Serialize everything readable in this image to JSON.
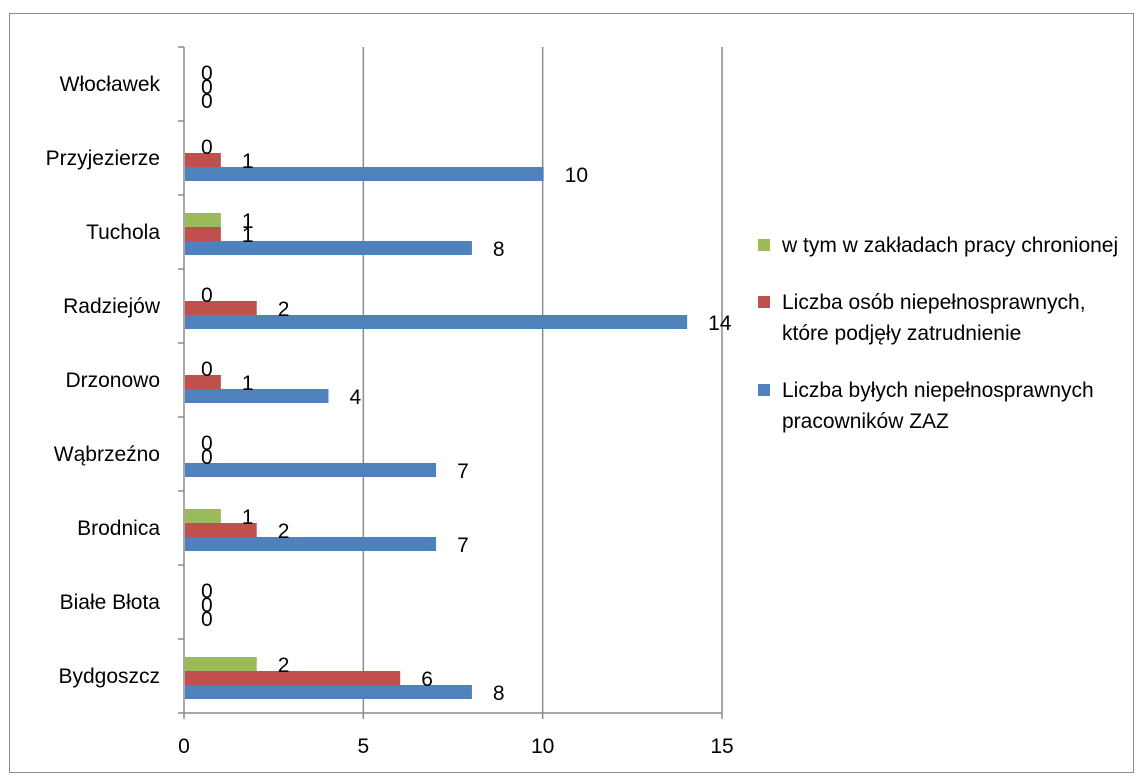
{
  "chart_data": {
    "type": "bar",
    "orientation": "horizontal",
    "categories": [
      "Bydgoszcz",
      "Białe Błota",
      "Brodnica",
      "Wąbrzeźno",
      "Drzonowo",
      "Radziejów",
      "Tuchola",
      "Przyjezierze",
      "Włocławek"
    ],
    "series": [
      {
        "name": "Liczba byłych niepełnosprawnych pracowników ZAZ",
        "color": "#4f81bd",
        "values": [
          8,
          0,
          7,
          7,
          4,
          14,
          8,
          10,
          0
        ]
      },
      {
        "name": "Liczba osób niepełnosprawnych, które podjęły zatrudnienie",
        "color": "#c0504d",
        "values": [
          6,
          0,
          2,
          0,
          1,
          2,
          1,
          1,
          0
        ]
      },
      {
        "name": "w tym w zakładach pracy chronionej",
        "color": "#9bbb59",
        "values": [
          2,
          0,
          1,
          0,
          0,
          0,
          1,
          0,
          0
        ]
      }
    ],
    "xlim": [
      0,
      15
    ],
    "xticks": [
      "0",
      "5",
      "10",
      "15"
    ],
    "grid": true,
    "legend_position": "right",
    "title": "",
    "xlabel": "",
    "ylabel": ""
  },
  "legend": [
    {
      "label": "w tym w zakładach pracy chronionej",
      "color": "#9bbb59"
    },
    {
      "label": "Liczba osób niepełnosprawnych, które podjęły zatrudnienie",
      "color": "#c0504d"
    },
    {
      "label": "Liczba byłych niepełnosprawnych pracowników ZAZ",
      "color": "#4f81bd"
    }
  ]
}
